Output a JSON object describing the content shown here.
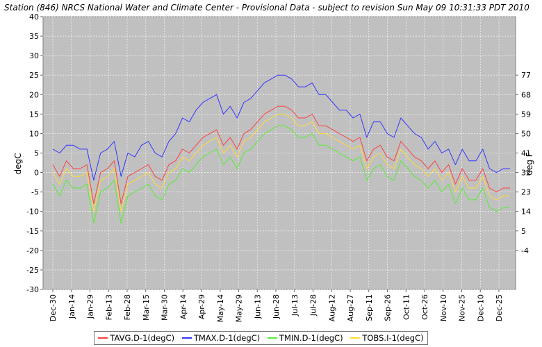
{
  "chart_data": {
    "type": "line",
    "title": "Station (846) NRCS National Water and Climate Center - Provisional Data - subject to revision Sun May 09 10:31:33 PDT 2010",
    "ylabel": "degC",
    "y2label": "deg F",
    "ylim": [
      -30,
      40
    ],
    "yticks": [
      "40",
      "35",
      "30",
      "25",
      "20",
      "15",
      "10",
      "5",
      "0",
      "-5",
      "-10",
      "-15",
      "-20",
      "-25",
      "-30"
    ],
    "y2ticks": [
      "77",
      "68",
      "59",
      "50",
      "41",
      "32",
      "23",
      "14",
      "5",
      "-4"
    ],
    "y2tick_values_degC": [
      25,
      20,
      15,
      10,
      5,
      0,
      -5,
      -10,
      -15,
      -20
    ],
    "xtick_labels": [
      "Dec-30",
      "Jan-14",
      "Jan-29",
      "Feb-13",
      "Feb-28",
      "Mar-15",
      "Mar-30",
      "Apr-14",
      "Apr-29",
      "May-14",
      "May-29",
      "Jun-13",
      "Jun-28",
      "Jul-13",
      "Jul-28",
      "Aug-12",
      "Aug-27",
      "Sep-11",
      "Sep-26",
      "Oct-11",
      "Oct-26",
      "Nov-10",
      "Nov-25",
      "Dec-10",
      "Dec-25"
    ],
    "grid": true,
    "legend_position": "bottom",
    "x_resolution": "every 5 days, starting Dec-30",
    "series": [
      {
        "name": "TAVG.D-1(degC)",
        "color": "#ff4040",
        "values": [
          2,
          -1,
          3,
          1,
          1,
          2,
          -8,
          0,
          1,
          3,
          -8,
          -1,
          0,
          1,
          2,
          -1,
          -2,
          2,
          3,
          6,
          5,
          7,
          9,
          10,
          11,
          7,
          9,
          6,
          10,
          11,
          13,
          15,
          16,
          17,
          17,
          16,
          14,
          14,
          15,
          12,
          12,
          11,
          10,
          9,
          8,
          9,
          3,
          6,
          7,
          4,
          3,
          8,
          6,
          4,
          3,
          1,
          3,
          0,
          2,
          -3,
          1,
          -2,
          -2,
          1,
          -4,
          -5,
          -4,
          -4
        ]
      },
      {
        "name": "TMAX.D-1(degC)",
        "color": "#3333ff",
        "values": [
          6,
          5,
          7,
          7,
          6,
          6,
          -2,
          5,
          6,
          8,
          -1,
          5,
          4,
          7,
          8,
          5,
          4,
          8,
          10,
          14,
          13,
          16,
          18,
          19,
          20,
          15,
          17,
          14,
          18,
          19,
          21,
          23,
          24,
          25,
          25,
          24,
          22,
          22,
          23,
          20,
          20,
          18,
          16,
          16,
          14,
          15,
          9,
          13,
          13,
          10,
          9,
          14,
          12,
          10,
          9,
          6,
          8,
          5,
          6,
          2,
          6,
          3,
          3,
          6,
          1,
          0,
          1,
          1
        ]
      },
      {
        "name": "TMIN.D-1(degC)",
        "color": "#55ee33",
        "values": [
          -3,
          -6,
          -2,
          -4,
          -4,
          -3,
          -13,
          -5,
          -4,
          -2,
          -13,
          -6,
          -5,
          -4,
          -3,
          -6,
          -7,
          -3,
          -2,
          1,
          0,
          2,
          4,
          5,
          6,
          2,
          4,
          1,
          5,
          6,
          8,
          10,
          11,
          12,
          12,
          11,
          9,
          9,
          10,
          7,
          7,
          6,
          5,
          4,
          3,
          4,
          -2,
          1,
          2,
          -1,
          -2,
          3,
          1,
          -1,
          -2,
          -4,
          -2,
          -5,
          -3,
          -8,
          -4,
          -7,
          -7,
          -4,
          -9,
          -10,
          -9,
          -9
        ]
      },
      {
        "name": "TOBS.I-1(degC)",
        "color": "#ffdd33",
        "values": [
          0,
          -3,
          1,
          -1,
          -1,
          0,
          -10,
          -2,
          -1,
          1,
          -10,
          -3,
          -2,
          -1,
          0,
          -3,
          -4,
          0,
          1,
          4,
          3,
          5,
          7,
          8,
          9,
          5,
          7,
          4,
          8,
          9,
          11,
          13,
          14,
          15,
          15,
          14,
          12,
          12,
          13,
          10,
          10,
          9,
          8,
          7,
          6,
          7,
          1,
          4,
          5,
          2,
          1,
          6,
          4,
          2,
          1,
          -1,
          1,
          -2,
          0,
          -5,
          -1,
          -4,
          -4,
          -1,
          -6,
          -7,
          -6,
          -6
        ]
      }
    ]
  }
}
